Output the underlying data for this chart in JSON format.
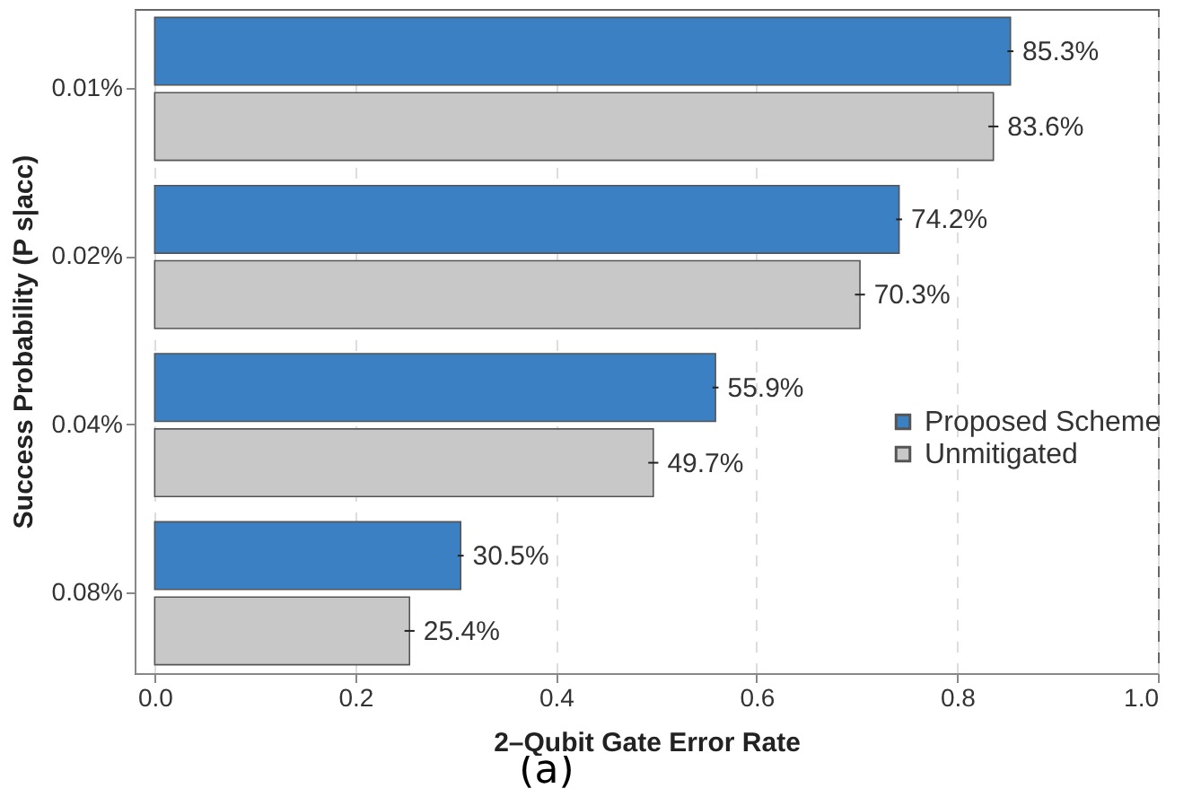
{
  "chart_data": {
    "type": "bar",
    "orientation": "horizontal",
    "xlabel": "2–Qubit Gate Error Rate",
    "ylabel": "Success Probability (P s|acc)",
    "categories": [
      "0.01%",
      "0.02%",
      "0.04%",
      "0.08%"
    ],
    "series": [
      {
        "name": "Proposed Scheme",
        "color": "#3a80c2",
        "values": [
          0.853,
          0.742,
          0.559,
          0.305
        ],
        "errors": [
          0.003,
          0.003,
          0.003,
          0.003
        ],
        "value_labels": [
          "85.3%",
          "74.2%",
          "55.9%",
          "30.5%"
        ]
      },
      {
        "name": "Unmitigated",
        "color": "#c8c8c8",
        "values": [
          0.836,
          0.703,
          0.497,
          0.254
        ],
        "errors": [
          0.005,
          0.005,
          0.005,
          0.005
        ],
        "value_labels": [
          "83.6%",
          "70.3%",
          "49.7%",
          "25.4%"
        ]
      }
    ],
    "xlim": [
      -0.02,
      1.0
    ],
    "xticks": [
      {
        "value": 0,
        "label": "0.0"
      },
      0.2,
      0.4,
      0.6,
      0.8,
      {
        "value": 1,
        "label": "1.0"
      }
    ],
    "grid": "x",
    "legend": "right",
    "annotations": [
      "(a)"
    ]
  }
}
